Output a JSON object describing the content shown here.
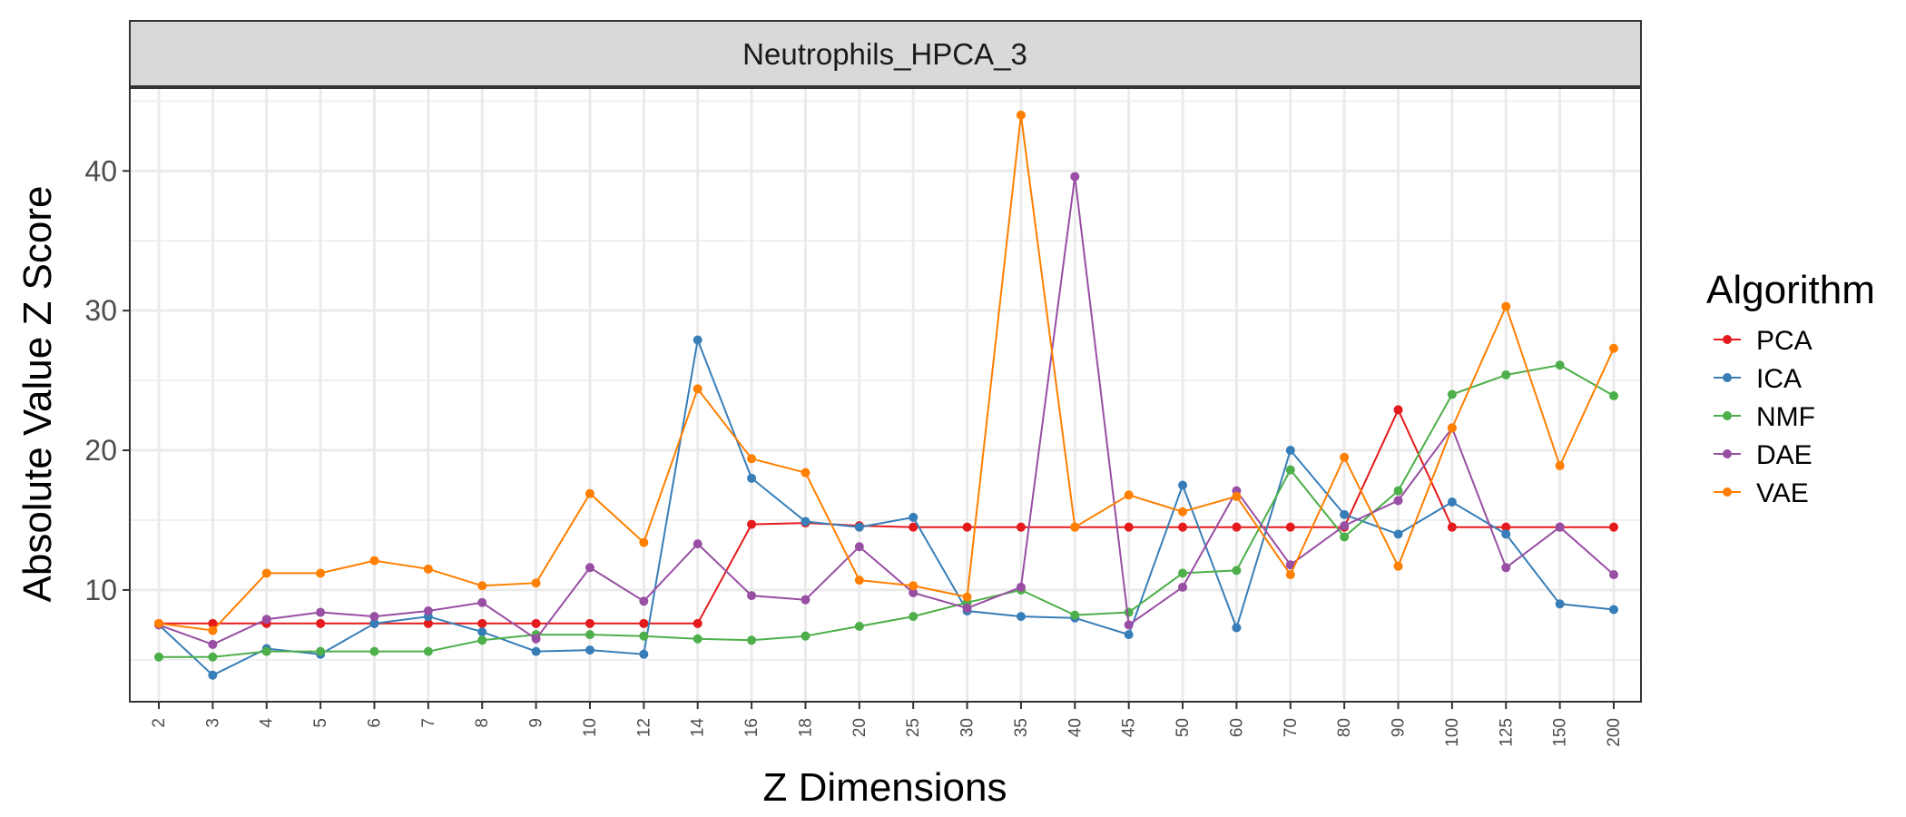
{
  "colors": {
    "panel_bg": "#ffffff",
    "grid": "#ebebeb",
    "strip_bg": "#d9d9d9",
    "border": "#333333"
  },
  "chart_data": {
    "type": "line",
    "title": "Neutrophils_HPCA_3",
    "xlabel": "Z Dimensions",
    "ylabel": "Absolute Value Z Score",
    "ylim": [
      2,
      46
    ],
    "yticks": [
      10,
      20,
      30,
      40
    ],
    "grid": true,
    "legend_title": "Algorithm",
    "legend_position": "right",
    "categories": [
      "2",
      "3",
      "4",
      "5",
      "6",
      "7",
      "8",
      "9",
      "10",
      "12",
      "14",
      "16",
      "18",
      "20",
      "25",
      "30",
      "35",
      "40",
      "45",
      "50",
      "60",
      "70",
      "80",
      "90",
      "100",
      "125",
      "150",
      "200"
    ],
    "series": [
      {
        "name": "PCA",
        "color": "#e41a1c",
        "values": [
          7.6,
          7.6,
          7.6,
          7.6,
          7.6,
          7.6,
          7.6,
          7.6,
          7.6,
          7.6,
          7.6,
          14.7,
          14.8,
          14.6,
          14.5,
          14.5,
          14.5,
          14.5,
          14.5,
          14.5,
          14.5,
          14.5,
          14.5,
          22.9,
          14.5,
          14.5,
          14.5,
          14.5
        ]
      },
      {
        "name": "ICA",
        "color": "#377eb8",
        "values": [
          7.5,
          3.9,
          5.8,
          5.4,
          7.6,
          8.1,
          7.0,
          5.6,
          5.7,
          5.4,
          27.9,
          18.0,
          14.9,
          14.5,
          15.2,
          8.5,
          8.1,
          8.0,
          6.8,
          17.5,
          7.3,
          20.0,
          15.4,
          14.0,
          16.3,
          14.0,
          9.0,
          8.6
        ]
      },
      {
        "name": "NMF",
        "color": "#4daf4a",
        "values": [
          5.2,
          5.2,
          5.6,
          5.6,
          5.6,
          5.6,
          6.4,
          6.8,
          6.8,
          6.7,
          6.5,
          6.4,
          6.7,
          7.4,
          8.1,
          9.1,
          10.0,
          8.2,
          8.4,
          11.2,
          11.4,
          18.6,
          13.8,
          17.1,
          24.0,
          25.4,
          26.1,
          23.9
        ]
      },
      {
        "name": "DAE",
        "color": "#984ea3",
        "values": [
          7.5,
          6.1,
          7.9,
          8.4,
          8.1,
          8.5,
          9.1,
          6.5,
          11.6,
          9.2,
          13.3,
          9.6,
          9.3,
          13.1,
          9.8,
          8.7,
          10.2,
          39.6,
          7.5,
          10.2,
          17.1,
          11.8,
          14.6,
          16.4,
          21.6,
          11.6,
          14.5,
          11.1
        ]
      },
      {
        "name": "VAE",
        "color": "#ff7f00",
        "values": [
          7.6,
          7.1,
          11.2,
          11.2,
          12.1,
          11.5,
          10.3,
          10.5,
          16.9,
          13.4,
          24.4,
          19.4,
          18.4,
          10.7,
          10.3,
          9.5,
          44.0,
          14.5,
          16.8,
          15.6,
          16.7,
          11.1,
          19.5,
          11.7,
          21.6,
          30.3,
          18.9,
          27.3
        ]
      }
    ]
  }
}
